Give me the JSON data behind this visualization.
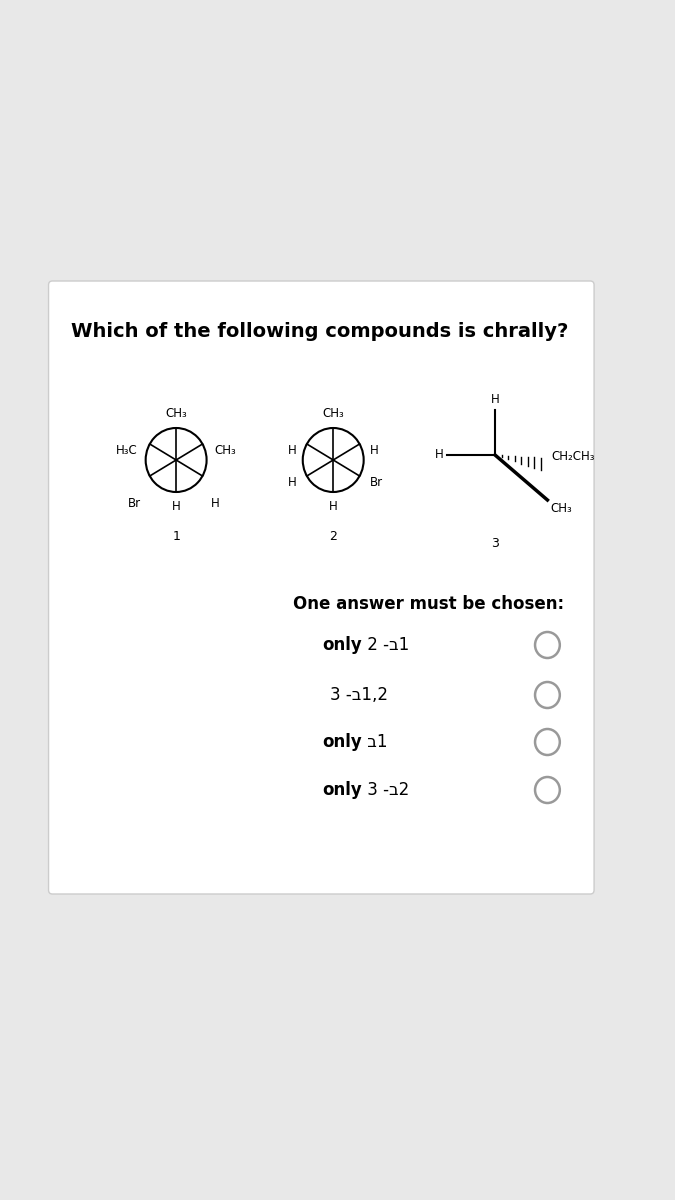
{
  "title": "Which of the following compounds is chrally?",
  "bg_color": "#e8e8e8",
  "card_color": "#ffffff",
  "answer_header": "One answer must be chosen:",
  "opt1_bold": "only",
  "opt1_normal": " 2 -ב1 ",
  "opt2_bold": "",
  "opt2_normal": "3 -ב1,2 ",
  "opt3_bold": "only",
  "opt3_normal": " ב1 ",
  "opt4_bold": "only",
  "opt4_normal": " 3 -ב2 "
}
